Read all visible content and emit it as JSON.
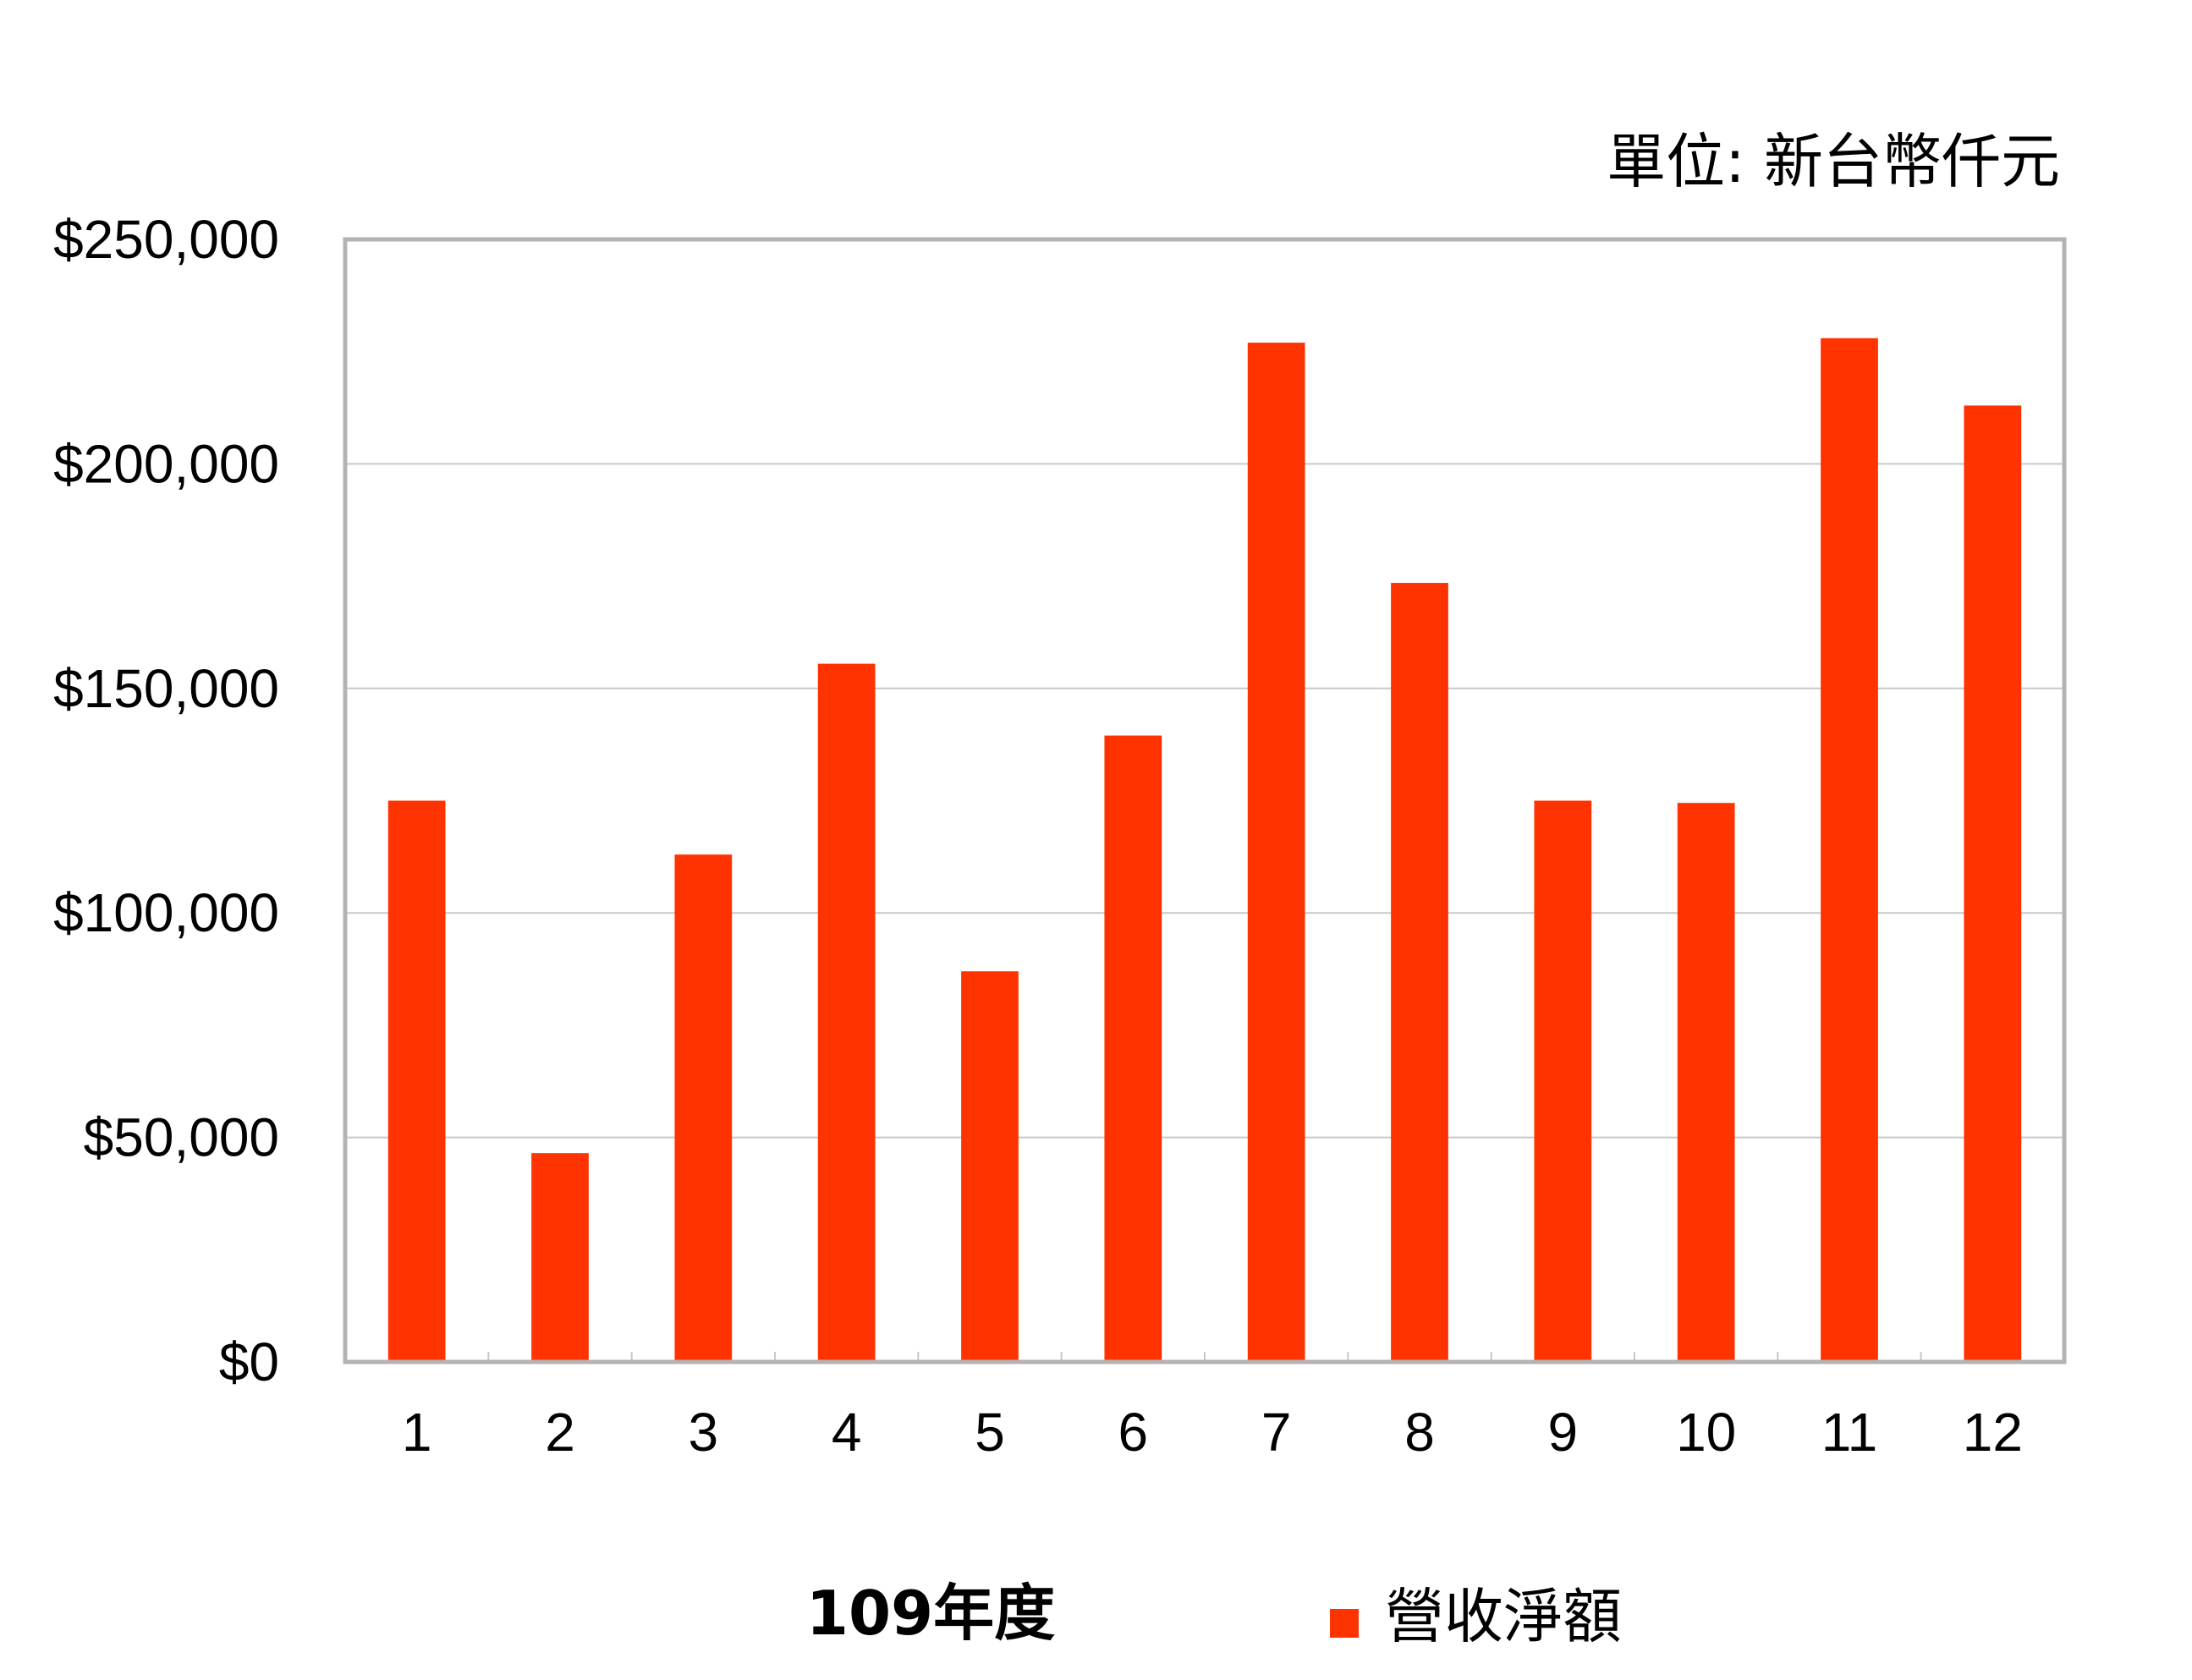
{
  "chart_data": {
    "type": "bar",
    "unit_label": "單位: 新台幣仟元",
    "xlabel": "109年度",
    "ylabel": "",
    "categories": [
      "1",
      "2",
      "3",
      "4",
      "5",
      "6",
      "7",
      "8",
      "9",
      "10",
      "11",
      "12"
    ],
    "series": [
      {
        "name": "營收淨額",
        "color": "#ff3300",
        "values": [
          125000,
          46500,
          113000,
          155500,
          87000,
          139500,
          227000,
          173500,
          125000,
          124500,
          228000,
          213000
        ]
      }
    ],
    "ylim": [
      0,
      250000
    ],
    "yticks": [
      0,
      50000,
      100000,
      150000,
      200000,
      250000
    ],
    "ytick_labels": [
      "$0",
      "$50,000",
      "$100,000",
      "$150,000",
      "$200,000",
      "$250,000"
    ],
    "grid": true,
    "legend_position": "bottom"
  }
}
